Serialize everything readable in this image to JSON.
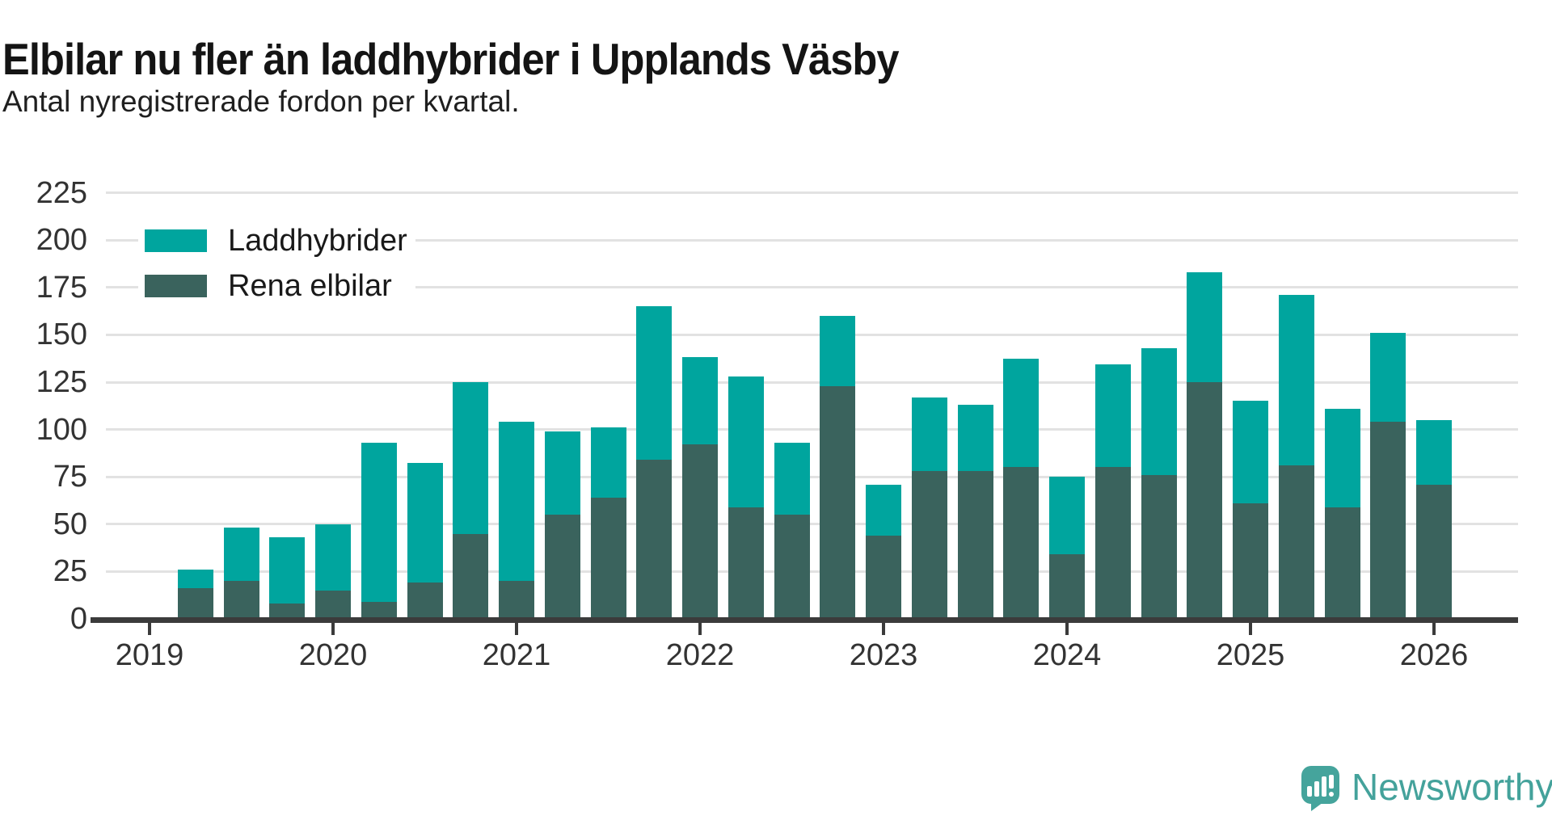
{
  "title": "Elbilar nu fler än laddhybrider i Upplands Väsby",
  "subtitle": "Antal nyregistrerade fordon per kvartal.",
  "legend": {
    "items": [
      {
        "label": "Laddhybrider",
        "color": "#00a59e"
      },
      {
        "label": "Rena elbilar",
        "color": "#3a635d"
      }
    ]
  },
  "brand": {
    "name": "Newsworthy",
    "color": "#44a29b"
  },
  "colors": {
    "laddhybrider": "#00a59e",
    "rena_elbilar": "#3a635d",
    "axis": "#3b3b3b",
    "gridline": "#e2e2e2",
    "text": "#333333"
  },
  "chart_data": {
    "type": "bar",
    "stacked": true,
    "title": "Elbilar nu fler än laddhybrider i Upplands Väsby",
    "subtitle": "Antal nyregistrerade fordon per kvartal.",
    "xlabel": "",
    "ylabel": "Antal nyregistrerade fordon",
    "ylim": [
      0,
      225
    ],
    "grid": true,
    "legend_position": "top-left",
    "y_ticks": [
      0,
      25,
      50,
      75,
      100,
      125,
      150,
      175,
      200,
      225
    ],
    "x_year_ticks": [
      "2019",
      "2020",
      "2021",
      "2022",
      "2023",
      "2024",
      "2025",
      "2026"
    ],
    "categories": [
      "2019 Q2",
      "2019 Q3",
      "2019 Q4",
      "2020 Q1",
      "2020 Q2",
      "2020 Q3",
      "2020 Q4",
      "2021 Q1",
      "2021 Q2",
      "2021 Q3",
      "2021 Q4",
      "2022 Q1",
      "2022 Q2",
      "2022 Q3",
      "2022 Q4",
      "2023 Q1",
      "2023 Q2",
      "2023 Q3",
      "2023 Q4",
      "2024 Q1",
      "2024 Q2",
      "2024 Q3",
      "2024 Q4",
      "2025 Q1",
      "2025 Q2",
      "2025 Q3",
      "2025 Q4",
      "2026 Q1"
    ],
    "series": [
      {
        "name": "Rena elbilar",
        "color": "#3a635d",
        "values": [
          16,
          20,
          8,
          15,
          9,
          19,
          45,
          20,
          55,
          64,
          84,
          92,
          59,
          55,
          123,
          44,
          78,
          78,
          80,
          34,
          80,
          76,
          125,
          61,
          81,
          59,
          104,
          71
        ]
      },
      {
        "name": "Laddhybrider",
        "color": "#00a59e",
        "values": [
          10,
          28,
          35,
          35,
          84,
          63,
          80,
          84,
          44,
          37,
          81,
          46,
          69,
          38,
          37,
          27,
          39,
          35,
          57,
          41,
          54,
          67,
          58,
          54,
          90,
          52,
          47,
          34
        ]
      }
    ],
    "totals": [
      26,
      48,
      43,
      50,
      93,
      82,
      125,
      104,
      99,
      101,
      165,
      138,
      128,
      93,
      160,
      71,
      117,
      113,
      137,
      75,
      134,
      143,
      183,
      115,
      171,
      111,
      151,
      105
    ]
  }
}
